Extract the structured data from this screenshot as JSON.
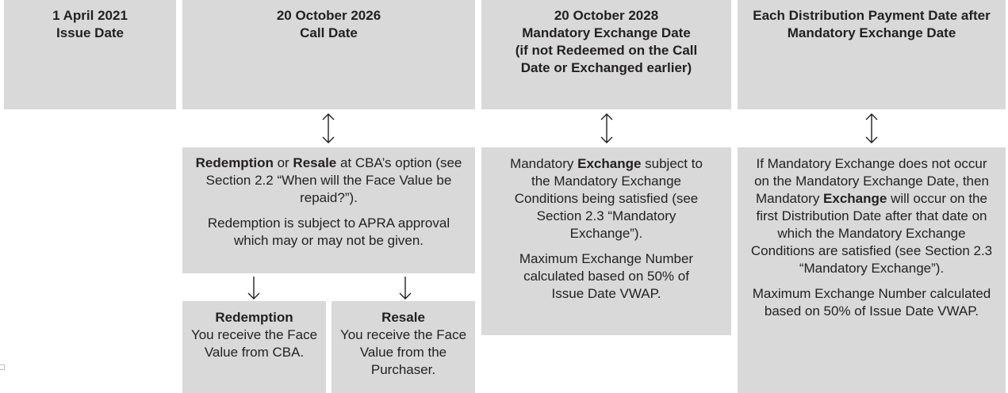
{
  "timeline": [
    {
      "date": "1 April 2021",
      "label": "Issue Date"
    },
    {
      "date": "20 October 2026",
      "label": "Call Date"
    },
    {
      "date": "20 October 2028",
      "label": "Mandatory Exchange Date",
      "note": "(if not Redeemed on the Call Date or Exchanged earlier)"
    },
    {
      "label": "Each Distribution Payment Date after Mandatory Exchange Date"
    }
  ],
  "outcomes": [
    {
      "paragraphs": [
        [
          {
            "text": "Redemption",
            "bold": true
          },
          {
            "text": " or "
          },
          {
            "text": "Resale",
            "bold": true
          },
          {
            "text": " at CBA’s option (see Section 2.2 “When will the Face Value be repaid?”)."
          }
        ],
        [
          {
            "text": "Redemption is subject to APRA approval which may or may not be given."
          }
        ]
      ]
    },
    {
      "paragraphs": [
        [
          {
            "text": "Mandatory "
          },
          {
            "text": "Exchange",
            "bold": true
          },
          {
            "text": " subject to the Mandatory Exchange Conditions being satisfied (see Section 2.3 “Mandatory Exchange”)."
          }
        ],
        [
          {
            "text": "Maximum Exchange Number calculated based on 50% of Issue Date VWAP."
          }
        ]
      ]
    },
    {
      "paragraphs": [
        [
          {
            "text": "If Mandatory Exchange does not occur on the Mandatory Exchange Date, then Mandatory "
          },
          {
            "text": "Exchange",
            "bold": true
          },
          {
            "text": " will occur on the first Distribution Date after that date on which the Mandatory Exchange Conditions are satisfied (see Section 2.3 “Mandatory Exchange”)."
          }
        ],
        [
          {
            "text": "Maximum Exchange Number calculated based on 50% of Issue Date VWAP."
          }
        ]
      ]
    }
  ],
  "options": [
    {
      "title": "Redemption",
      "text": "You receive the Face Value from CBA."
    },
    {
      "title": "Resale",
      "text": "You receive the Face Value from the Purchaser."
    }
  ]
}
